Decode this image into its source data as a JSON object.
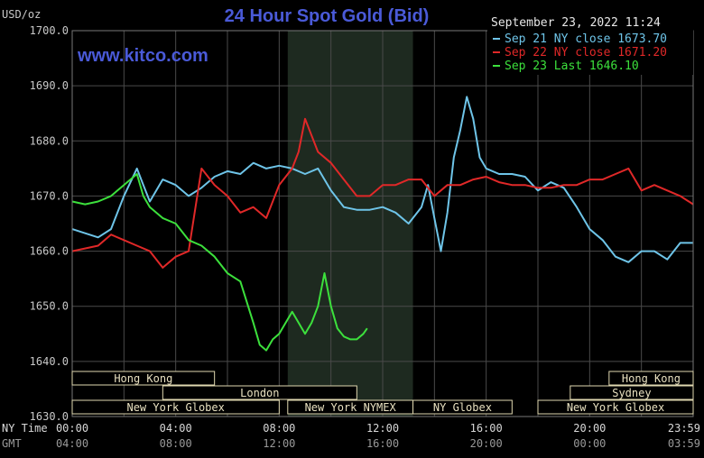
{
  "chart_data": {
    "type": "line",
    "title": "24 Hour Spot Gold (Bid)",
    "watermark": "www.kitco.com",
    "timestamp": "September 23, 2022 11:24",
    "ylabel": "USD/oz",
    "ylim": [
      1630,
      1700
    ],
    "y_ticks": [
      "1700.0",
      "1690.0",
      "1680.0",
      "1670.0",
      "1660.0",
      "1650.0",
      "1640.0",
      "1630.0"
    ],
    "xlim_hours": [
      0,
      24
    ],
    "x_tick_rows": [
      {
        "label": "NY Time",
        "ticks": [
          "00:00",
          "04:00",
          "08:00",
          "12:00",
          "16:00",
          "20:00",
          "23:59"
        ]
      },
      {
        "label": "GMT",
        "ticks": [
          "04:00",
          "08:00",
          "12:00",
          "16:00",
          "20:00",
          "00:00",
          "03:59"
        ]
      }
    ],
    "grid": true,
    "legend_position": "top-right",
    "colors": {
      "background": "#000000",
      "plot_bg": "#000000",
      "grid": "#4a4a4a",
      "shade": "#1e2a20",
      "title": "#4a5ad8",
      "watermark": "#4a5ad8",
      "axis_text": "#c8c8c8",
      "session_box": "#e0d8b0",
      "session_text": "#e8e0c0"
    },
    "shaded_session_hours": [
      8.33,
      13.17
    ],
    "sessions": [
      {
        "name": "Hong Kong",
        "row": 0,
        "start": 0,
        "end": 5.5
      },
      {
        "name": "Hong Kong",
        "row": 0,
        "start": 20.75,
        "end": 24
      },
      {
        "name": "London",
        "row": 1,
        "start": 3.5,
        "end": 11.0
      },
      {
        "name": "Sydney",
        "row": 1,
        "start": 19.25,
        "end": 24
      },
      {
        "name": "New York Globex",
        "row": 2,
        "start": 0,
        "end": 8.0
      },
      {
        "name": "New York NYMEX",
        "row": 2,
        "start": 8.33,
        "end": 13.17
      },
      {
        "name": "NY Globex",
        "row": 2,
        "start": 13.17,
        "end": 17.0
      },
      {
        "name": "New York Globex",
        "row": 2,
        "start": 18.0,
        "end": 24
      }
    ],
    "series": [
      {
        "name": "Sep 21 NY close 1673.70",
        "color": "#6ec4e8",
        "x": [
          0,
          1,
          1.5,
          2,
          2.5,
          2.75,
          3,
          3.5,
          4,
          4.5,
          5,
          5.5,
          6,
          6.5,
          7,
          7.5,
          8,
          8.5,
          9,
          9.5,
          10,
          10.5,
          11,
          11.5,
          12,
          12.5,
          13,
          13.5,
          13.75,
          14,
          14.25,
          14.5,
          14.75,
          15,
          15.25,
          15.5,
          15.75,
          16,
          16.5,
          17,
          17.5,
          18,
          18.5,
          19,
          19.5,
          20,
          20.5,
          21,
          21.5,
          22,
          22.5,
          23,
          23.5,
          24
        ],
        "y": [
          1664,
          1662.5,
          1664,
          1670,
          1675,
          1672,
          1669,
          1673,
          1672,
          1670,
          1671.5,
          1673.5,
          1674.5,
          1674,
          1676,
          1675,
          1675.5,
          1675,
          1674,
          1675,
          1671,
          1668,
          1667.5,
          1667.5,
          1668,
          1667,
          1665,
          1668,
          1672,
          1666,
          1660,
          1667,
          1677,
          1682,
          1688,
          1684,
          1677,
          1675,
          1674,
          1674,
          1673.5,
          1671,
          1672.5,
          1671.5,
          1668,
          1664,
          1662,
          1659,
          1658,
          1660,
          1660,
          1658.5,
          1661.5,
          1661.5
        ]
      },
      {
        "name": "Sep 22 NY close 1671.20",
        "color": "#e02828",
        "x": [
          0,
          1,
          1.5,
          2,
          2.5,
          3,
          3.5,
          4,
          4.5,
          5,
          5.5,
          6,
          6.5,
          7,
          7.5,
          8,
          8.5,
          8.75,
          9,
          9.5,
          10,
          10.5,
          11,
          11.5,
          12,
          12.5,
          13,
          13.5,
          14,
          14.5,
          15,
          15.5,
          16,
          16.5,
          17,
          17.5,
          18,
          18.5,
          19,
          19.5,
          20,
          20.5,
          21,
          21.5,
          22,
          22.5,
          23,
          23.5,
          24
        ],
        "y": [
          1660,
          1661,
          1663,
          1662,
          1661,
          1660,
          1657,
          1659,
          1660,
          1675,
          1672,
          1670,
          1667,
          1668,
          1666,
          1672,
          1675,
          1678,
          1684,
          1678,
          1676,
          1673,
          1670,
          1670,
          1672,
          1672,
          1673,
          1673,
          1670,
          1672,
          1672,
          1673,
          1673.5,
          1672.5,
          1672,
          1672,
          1671.5,
          1671.5,
          1672,
          1672,
          1673,
          1673,
          1674,
          1675,
          1671,
          1672,
          1671,
          1670,
          1668.5
        ]
      },
      {
        "name": "Sep 23 Last 1646.10",
        "color": "#3ce03c",
        "x": [
          0,
          0.5,
          1,
          1.5,
          2,
          2.5,
          2.75,
          3,
          3.5,
          4,
          4.5,
          5,
          5.5,
          6,
          6.5,
          7,
          7.25,
          7.5,
          7.75,
          8,
          8.5,
          9,
          9.25,
          9.5,
          9.75,
          10,
          10.25,
          10.5,
          10.75,
          11,
          11.25,
          11.4
        ],
        "y": [
          1669,
          1668.5,
          1669,
          1670,
          1672,
          1674,
          1670,
          1668,
          1666,
          1665,
          1662,
          1661,
          1659,
          1656,
          1654.5,
          1647,
          1643,
          1642,
          1644,
          1645,
          1649,
          1645,
          1647,
          1650,
          1656,
          1650,
          1646,
          1644.5,
          1644,
          1644,
          1645,
          1646
        ]
      }
    ]
  }
}
